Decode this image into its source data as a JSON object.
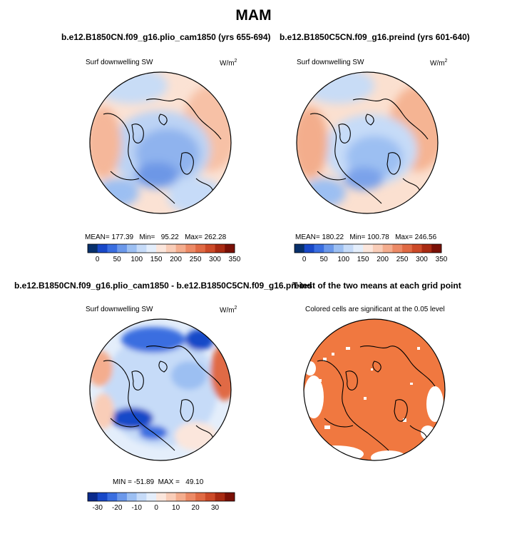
{
  "figure": {
    "title": "MAM"
  },
  "panels": [
    {
      "title": "b.e12.B1850CN.f09_g16.plio_cam1850 (yrs 655-694)",
      "variable": "Surf downwelling SW",
      "units_base": "W/m",
      "units_exp": "2",
      "stats": "MEAN= 177.39   Min=   95.22   Max= 262.28",
      "colorbar_ticks": [
        "0",
        "50",
        "100",
        "150",
        "200",
        "250",
        "300",
        "350"
      ]
    },
    {
      "title": "b.e12.B1850C5CN.f09_g16.preind (yrs 601-640)",
      "variable": "Surf downwelling SW",
      "units_base": "W/m",
      "units_exp": "2",
      "stats": "MEAN= 180.22   Min= 100.78   Max= 246.56",
      "colorbar_ticks": [
        "0",
        "50",
        "100",
        "150",
        "200",
        "250",
        "300",
        "350"
      ]
    },
    {
      "title": "b.e12.B1850CN.f09_g16.plio_cam1850 - b.e12.B1850C5CN.f09_g16.preind",
      "variable": "Surf downwelling SW",
      "units_base": "W/m",
      "units_exp": "2",
      "stats": "MIN = -51.89  MAX =   49.10",
      "colorbar_ticks": [
        "-30",
        "-20",
        "-10",
        "0",
        "10",
        "20",
        "30"
      ]
    },
    {
      "title": "T-test of the two means at each grid point",
      "subtitle": "Colored cells are significant at the 0.05 level"
    }
  ],
  "colors": {
    "abs_scale": [
      "#08306b",
      "#1848c8",
      "#3a6ee0",
      "#6b98ea",
      "#9cbff2",
      "#c6dbf8",
      "#e4eefb",
      "#fbe6dc",
      "#f9cdb8",
      "#f4ad8e",
      "#ec8a66",
      "#e06a44",
      "#cc4a28",
      "#a82a12",
      "#7a1006"
    ],
    "diff_scale": [
      "#0a2a8c",
      "#1848c8",
      "#3a6ee0",
      "#6b98ea",
      "#9cbff2",
      "#c6dbf8",
      "#e4eefb",
      "#fbe6dc",
      "#f9cdb8",
      "#f4ad8e",
      "#ec8a66",
      "#e06a44",
      "#cc4a28",
      "#a82a12",
      "#7a1006"
    ],
    "ttest": "#f07840"
  }
}
